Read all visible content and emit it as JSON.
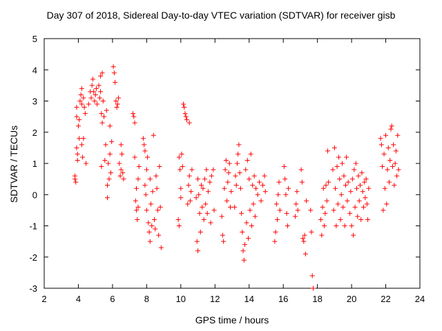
{
  "chart_data": {
    "type": "scatter",
    "title": "Day 307 of 2018, Sidereal Day-to-day VTEC variation (SDTVAR) for receiver gisb",
    "xlabel": "GPS time / hours",
    "ylabel": "SDTVAR / TECUs",
    "xlim": [
      2,
      24
    ],
    "ylim": [
      -3,
      5
    ],
    "xticks": [
      2,
      4,
      6,
      8,
      10,
      12,
      14,
      16,
      18,
      20,
      22,
      24
    ],
    "yticks": [
      -3,
      -2,
      -1,
      0,
      1,
      2,
      3,
      4,
      5
    ],
    "grid": false,
    "marker": "+",
    "color": "#ff0000",
    "series": [
      {
        "name": "SDTVAR",
        "points": [
          [
            3.8,
            0.5
          ],
          [
            3.8,
            0.6
          ],
          [
            3.85,
            0.4
          ],
          [
            3.9,
            2.8
          ],
          [
            3.9,
            2.5
          ],
          [
            3.9,
            1.5
          ],
          [
            3.95,
            1.1
          ],
          [
            3.95,
            1.3
          ],
          [
            4.0,
            2.2
          ],
          [
            4.05,
            1.8
          ],
          [
            4.05,
            2.4
          ],
          [
            4.1,
            3.0
          ],
          [
            4.15,
            3.2
          ],
          [
            4.2,
            3.4
          ],
          [
            4.2,
            2.9
          ],
          [
            4.2,
            1.6
          ],
          [
            4.25,
            1.2
          ],
          [
            4.3,
            1.8
          ],
          [
            4.3,
            3.1
          ],
          [
            4.35,
            2.8
          ],
          [
            4.4,
            2.6
          ],
          [
            4.45,
            1.0
          ],
          [
            4.6,
            2.9
          ],
          [
            4.7,
            3.3
          ],
          [
            4.75,
            3.1
          ],
          [
            4.8,
            3.5
          ],
          [
            4.85,
            3.7
          ],
          [
            4.9,
            3.3
          ],
          [
            4.95,
            3.0
          ],
          [
            5.0,
            3.2
          ],
          [
            5.05,
            3.4
          ],
          [
            5.1,
            2.9
          ],
          [
            5.2,
            3.5
          ],
          [
            5.25,
            3.1
          ],
          [
            5.3,
            3.8
          ],
          [
            5.3,
            3.3
          ],
          [
            5.35,
            2.6
          ],
          [
            5.35,
            0.9
          ],
          [
            5.4,
            2.3
          ],
          [
            5.4,
            3.9
          ],
          [
            5.45,
            3.0
          ],
          [
            5.5,
            2.5
          ],
          [
            5.55,
            1.1
          ],
          [
            5.6,
            1.6
          ],
          [
            5.65,
            2.7
          ],
          [
            5.7,
            -0.1
          ],
          [
            5.7,
            0.3
          ],
          [
            5.75,
            1.0
          ],
          [
            5.8,
            0.5
          ],
          [
            5.85,
            1.3
          ],
          [
            5.85,
            2.2
          ],
          [
            5.9,
            0.7
          ],
          [
            5.95,
            1.7
          ],
          [
            6.05,
            4.1
          ],
          [
            6.1,
            3.9
          ],
          [
            6.15,
            3.6
          ],
          [
            6.2,
            3.0
          ],
          [
            6.25,
            2.8
          ],
          [
            6.3,
            2.9
          ],
          [
            6.35,
            3.1
          ],
          [
            6.4,
            1.0
          ],
          [
            6.45,
            0.6
          ],
          [
            6.5,
            0.8
          ],
          [
            6.5,
            1.6
          ],
          [
            6.55,
            1.3
          ],
          [
            6.6,
            0.7
          ],
          [
            6.65,
            0.5
          ],
          [
            7.2,
            2.6
          ],
          [
            7.25,
            2.5
          ],
          [
            7.3,
            2.3
          ],
          [
            7.3,
            1.2
          ],
          [
            7.35,
            -0.2
          ],
          [
            7.4,
            0.2
          ],
          [
            7.4,
            -0.5
          ],
          [
            7.45,
            -0.8
          ],
          [
            7.5,
            0.5
          ],
          [
            7.5,
            -0.4
          ],
          [
            7.55,
            0.9
          ],
          [
            7.8,
            1.8
          ],
          [
            7.85,
            1.6
          ],
          [
            7.9,
            1.4
          ],
          [
            7.9,
            0.3
          ],
          [
            7.95,
            0.0
          ],
          [
            8.0,
            -0.5
          ],
          [
            8.0,
            0.8
          ],
          [
            8.05,
            1.2
          ],
          [
            8.1,
            -0.9
          ],
          [
            8.15,
            -1.2
          ],
          [
            8.2,
            -1.5
          ],
          [
            8.2,
            0.5
          ],
          [
            8.25,
            -0.3
          ],
          [
            8.3,
            -1.0
          ],
          [
            8.35,
            0.1
          ],
          [
            8.4,
            1.9
          ],
          [
            8.45,
            -0.8
          ],
          [
            8.5,
            -1.1
          ],
          [
            8.55,
            0.6
          ],
          [
            8.6,
            0.2
          ],
          [
            8.65,
            -0.5
          ],
          [
            8.7,
            -1.3
          ],
          [
            8.75,
            0.9
          ],
          [
            8.8,
            -0.4
          ],
          [
            8.85,
            -1.7
          ],
          [
            9.85,
            -0.8
          ],
          [
            9.9,
            -1.0
          ],
          [
            9.9,
            1.2
          ],
          [
            9.95,
            0.8
          ],
          [
            10.0,
            0.2
          ],
          [
            10.0,
            -0.1
          ],
          [
            10.05,
            1.3
          ],
          [
            10.1,
            0.9
          ],
          [
            10.15,
            2.9
          ],
          [
            10.2,
            2.8
          ],
          [
            10.25,
            2.6
          ],
          [
            10.3,
            2.5
          ],
          [
            10.35,
            2.4
          ],
          [
            10.4,
            -0.3
          ],
          [
            10.45,
            0.3
          ],
          [
            10.5,
            2.3
          ],
          [
            10.5,
            0.6
          ],
          [
            10.55,
            -0.2
          ],
          [
            10.6,
            0.1
          ],
          [
            10.65,
            0.8
          ],
          [
            10.9,
            -0.1
          ],
          [
            10.95,
            -1.5
          ],
          [
            11.0,
            -1.8
          ],
          [
            11.0,
            0.5
          ],
          [
            11.05,
            0.0
          ],
          [
            11.1,
            -0.6
          ],
          [
            11.15,
            -1.2
          ],
          [
            11.2,
            0.3
          ],
          [
            11.25,
            -0.4
          ],
          [
            11.3,
            0.2
          ],
          [
            11.35,
            -0.8
          ],
          [
            11.4,
            0.5
          ],
          [
            11.45,
            -0.3
          ],
          [
            11.5,
            0.8
          ],
          [
            11.55,
            -0.6
          ],
          [
            11.6,
            0.1
          ],
          [
            11.7,
            0.4
          ],
          [
            11.75,
            -0.9
          ],
          [
            11.8,
            0.6
          ],
          [
            11.9,
            0.8
          ],
          [
            11.95,
            -0.5
          ],
          [
            12.4,
            -0.7
          ],
          [
            12.45,
            -1.3
          ],
          [
            12.5,
            -1.5
          ],
          [
            12.55,
            0.2
          ],
          [
            12.6,
            0.8
          ],
          [
            12.65,
            1.1
          ],
          [
            12.7,
            -0.2
          ],
          [
            12.75,
            0.4
          ],
          [
            12.8,
            0.7
          ],
          [
            12.85,
            1.0
          ],
          [
            12.9,
            -0.4
          ],
          [
            12.95,
            0.1
          ],
          [
            13.15,
            -0.4
          ],
          [
            13.2,
            0.6
          ],
          [
            13.25,
            0.3
          ],
          [
            13.3,
            1.0
          ],
          [
            13.35,
            1.3
          ],
          [
            13.4,
            1.6
          ],
          [
            13.45,
            0.7
          ],
          [
            13.5,
            0.2
          ],
          [
            13.55,
            -0.6
          ],
          [
            13.6,
            -1.2
          ],
          [
            13.65,
            -1.8
          ],
          [
            13.7,
            -2.1
          ],
          [
            13.75,
            -1.6
          ],
          [
            13.8,
            0.8
          ],
          [
            13.85,
            -0.9
          ],
          [
            13.9,
            1.1
          ],
          [
            13.95,
            -1.4
          ],
          [
            14.0,
            0.5
          ],
          [
            14.05,
            -0.5
          ],
          [
            14.1,
            1.3
          ],
          [
            14.15,
            -1.0
          ],
          [
            14.2,
            0.3
          ],
          [
            14.25,
            -0.3
          ],
          [
            14.3,
            0.6
          ],
          [
            14.35,
            -0.7
          ],
          [
            14.4,
            0.2
          ],
          [
            14.5,
            0.0
          ],
          [
            14.6,
            0.4
          ],
          [
            14.7,
            -0.2
          ],
          [
            14.8,
            0.3
          ],
          [
            14.9,
            0.6
          ],
          [
            14.95,
            0.1
          ],
          [
            15.5,
            -1.5
          ],
          [
            15.55,
            -1.2
          ],
          [
            15.6,
            -0.3
          ],
          [
            15.65,
            -0.8
          ],
          [
            15.7,
            0.0
          ],
          [
            15.75,
            0.4
          ],
          [
            15.8,
            -0.5
          ],
          [
            16.05,
            0.9
          ],
          [
            16.1,
            0.5
          ],
          [
            16.15,
            0.0
          ],
          [
            16.2,
            -0.6
          ],
          [
            16.25,
            -1.0
          ],
          [
            16.3,
            0.2
          ],
          [
            16.7,
            -0.7
          ],
          [
            16.75,
            -0.3
          ],
          [
            16.8,
            0.1
          ],
          [
            16.85,
            -0.5
          ],
          [
            17.05,
            0.8
          ],
          [
            17.1,
            0.4
          ],
          [
            17.15,
            -1.4
          ],
          [
            17.2,
            -1.5
          ],
          [
            17.25,
            -1.3
          ],
          [
            17.3,
            -1.9
          ],
          [
            17.35,
            -0.2
          ],
          [
            17.6,
            -0.5
          ],
          [
            17.65,
            -1.2
          ],
          [
            17.7,
            -2.6
          ],
          [
            17.75,
            -3.0
          ],
          [
            18.2,
            -0.8
          ],
          [
            18.25,
            -1.3
          ],
          [
            18.3,
            -0.4
          ],
          [
            18.35,
            0.2
          ],
          [
            18.4,
            -1.0
          ],
          [
            18.45,
            -0.6
          ],
          [
            18.5,
            0.3
          ],
          [
            18.55,
            -0.2
          ],
          [
            18.6,
            1.4
          ],
          [
            18.65,
            0.4
          ],
          [
            18.9,
            0.8
          ],
          [
            18.95,
            -0.5
          ],
          [
            19.0,
            1.5
          ],
          [
            19.05,
            0.2
          ],
          [
            19.1,
            -1.0
          ],
          [
            19.15,
            0.9
          ],
          [
            19.2,
            -0.3
          ],
          [
            19.25,
            1.2
          ],
          [
            19.3,
            0.5
          ],
          [
            19.35,
            -0.8
          ],
          [
            19.4,
            0.0
          ],
          [
            19.45,
            1.0
          ],
          [
            19.5,
            -0.4
          ],
          [
            19.55,
            0.6
          ],
          [
            19.6,
            -1.0
          ],
          [
            19.65,
            0.3
          ],
          [
            19.7,
            1.2
          ],
          [
            19.75,
            -0.2
          ],
          [
            19.8,
            0.4
          ],
          [
            19.9,
            -0.6
          ],
          [
            19.95,
            0.1
          ],
          [
            20.0,
            -1.0
          ],
          [
            20.05,
            0.5
          ],
          [
            20.1,
            -1.3
          ],
          [
            20.15,
            0.8
          ],
          [
            20.2,
            -0.4
          ],
          [
            20.25,
            1.0
          ],
          [
            20.3,
            0.2
          ],
          [
            20.35,
            -0.7
          ],
          [
            20.4,
            0.6
          ],
          [
            20.45,
            -0.2
          ],
          [
            20.5,
            0.3
          ],
          [
            20.55,
            -0.8
          ],
          [
            20.6,
            0.7
          ],
          [
            20.65,
            0.1
          ],
          [
            20.7,
            -0.4
          ],
          [
            20.75,
            0.4
          ],
          [
            20.8,
            -0.1
          ],
          [
            20.85,
            0.5
          ],
          [
            20.9,
            -0.3
          ],
          [
            20.95,
            -0.8
          ],
          [
            21.0,
            0.2
          ],
          [
            21.7,
            1.8
          ],
          [
            21.75,
            1.6
          ],
          [
            21.8,
            0.9
          ],
          [
            21.85,
            -0.5
          ],
          [
            21.9,
            1.3
          ],
          [
            21.95,
            0.2
          ],
          [
            22.0,
            1.9
          ],
          [
            22.05,
            -0.3
          ],
          [
            22.1,
            0.8
          ],
          [
            22.15,
            1.5
          ],
          [
            22.2,
            0.4
          ],
          [
            22.25,
            1.1
          ],
          [
            22.3,
            2.1
          ],
          [
            22.35,
            2.2
          ],
          [
            22.4,
            0.9
          ],
          [
            22.45,
            1.6
          ],
          [
            22.5,
            0.3
          ],
          [
            22.55,
            1.0
          ],
          [
            22.6,
            1.4
          ],
          [
            22.65,
            0.6
          ],
          [
            22.7,
            1.9
          ],
          [
            22.75,
            0.8
          ]
        ]
      }
    ]
  }
}
